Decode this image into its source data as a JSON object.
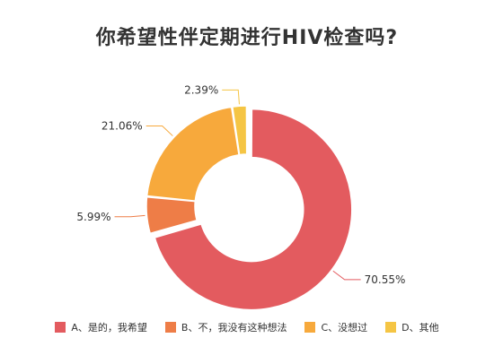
{
  "chart_data": {
    "type": "pie",
    "title": "你希望性伴定期进行HIV检查吗?",
    "categories": [
      "A、是的，我希望",
      "B、不，我没有这种想法",
      "C、没想过",
      "D、其他"
    ],
    "values": [
      70.55,
      5.99,
      21.06,
      2.39
    ],
    "value_labels": [
      "70.55%",
      "5.99%",
      "21.06%",
      "2.39%"
    ],
    "colors": [
      "#e35b5f",
      "#ee7d47",
      "#f7a93c",
      "#f5c544"
    ],
    "donut": true,
    "legend_position": "bottom"
  }
}
